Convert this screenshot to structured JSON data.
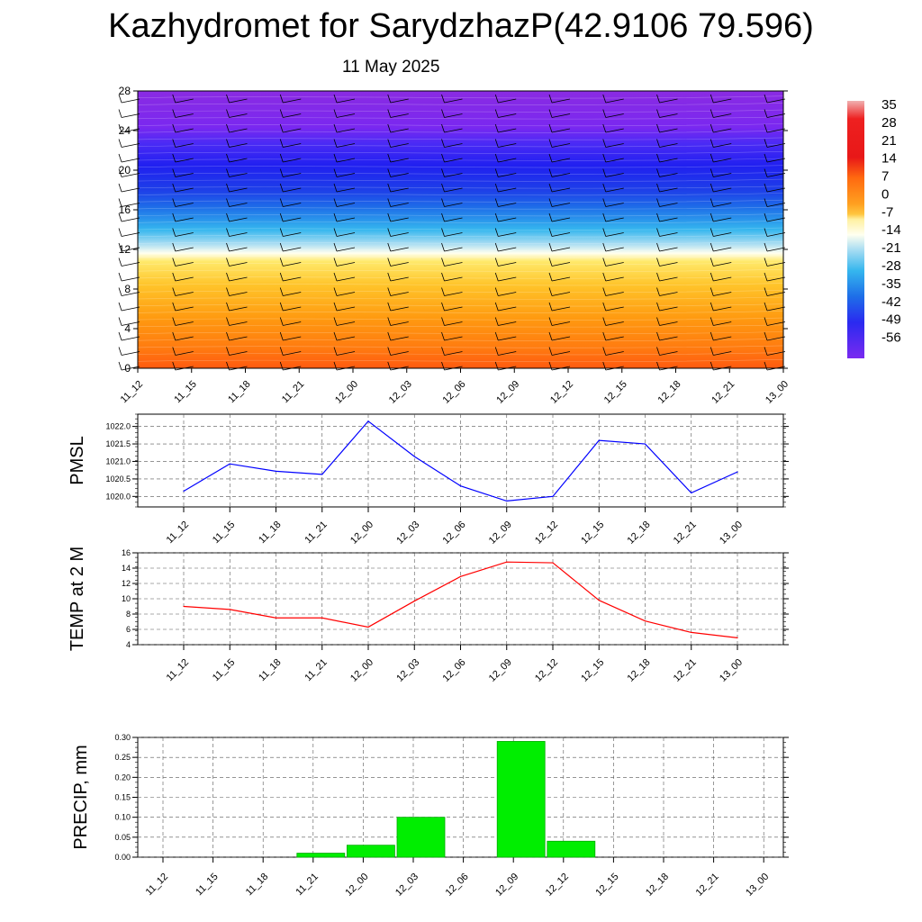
{
  "title": "Kazhydromet for SarydzhazP(42.9106 79.596)",
  "subtitle": "11 May 2025",
  "colors": {
    "pmsl_line": "#0000ff",
    "temp_line": "#ff0000",
    "precip_bar": "#00ee00",
    "precip_bar_edge": "#00aa00"
  },
  "chart_data": [
    {
      "type": "heatmap",
      "title": "",
      "x_categories": [
        "11_12",
        "11_15",
        "11_18",
        "11_21",
        "12_00",
        "12_03",
        "12_06",
        "12_09",
        "12_12",
        "12_15",
        "12_18",
        "12_21",
        "13_00"
      ],
      "y_ticks": [
        0,
        4,
        8,
        12,
        16,
        20,
        24,
        28
      ],
      "ylim": [
        0,
        28
      ],
      "colorbar": {
        "labels": [
          "35",
          "28",
          "21",
          "14",
          "7",
          "0",
          "-7",
          "-14",
          "-21",
          "-28",
          "-35",
          "-42",
          "-49",
          "-56"
        ],
        "range": [
          -56,
          35
        ]
      },
      "overlay": "wind barbs"
    },
    {
      "type": "line",
      "ylabel": "PMSL",
      "categories": [
        "11_12",
        "11_15",
        "11_18",
        "11_21",
        "12_00",
        "12_03",
        "12_06",
        "12_09",
        "12_12",
        "12_15",
        "12_18",
        "12_21",
        "13_00"
      ],
      "values": [
        1020.15,
        1020.93,
        1020.72,
        1020.63,
        1022.15,
        1021.14,
        1020.3,
        1019.87,
        1020.0,
        1021.6,
        1021.5,
        1020.1,
        1020.7
      ],
      "ylim": [
        1019.7,
        1022.35
      ],
      "y_ticks": [
        "1020.0",
        "1020.5",
        "1021.0",
        "1021.5",
        "1022.0"
      ],
      "grid": true
    },
    {
      "type": "line",
      "ylabel": "TEMP at 2 M",
      "categories": [
        "11_12",
        "11_15",
        "11_18",
        "11_21",
        "12_00",
        "12_03",
        "12_06",
        "12_09",
        "12_12",
        "12_15",
        "12_18",
        "12_21",
        "13_00"
      ],
      "values": [
        9.0,
        8.6,
        7.5,
        7.5,
        6.3,
        9.7,
        12.9,
        14.8,
        14.7,
        9.8,
        7.1,
        5.6,
        4.9
      ],
      "ylim": [
        4,
        16
      ],
      "y_ticks": [
        "4",
        "6",
        "8",
        "10",
        "12",
        "14",
        "16"
      ],
      "grid": true
    },
    {
      "type": "bar",
      "ylabel": "PRECIP, mm",
      "categories": [
        "11_12",
        "11_15",
        "11_18",
        "11_21",
        "12_00",
        "12_03",
        "12_06",
        "12_09",
        "12_12",
        "12_15",
        "12_18",
        "12_21",
        "13_00"
      ],
      "values": [
        0,
        0,
        0,
        0.01,
        0.03,
        0.1,
        0,
        0.29,
        0.04,
        0,
        0,
        0,
        0
      ],
      "ylim": [
        0,
        0.3
      ],
      "y_ticks": [
        "0.00",
        "0.05",
        "0.10",
        "0.15",
        "0.20",
        "0.25",
        "0.30"
      ],
      "grid": true
    }
  ]
}
